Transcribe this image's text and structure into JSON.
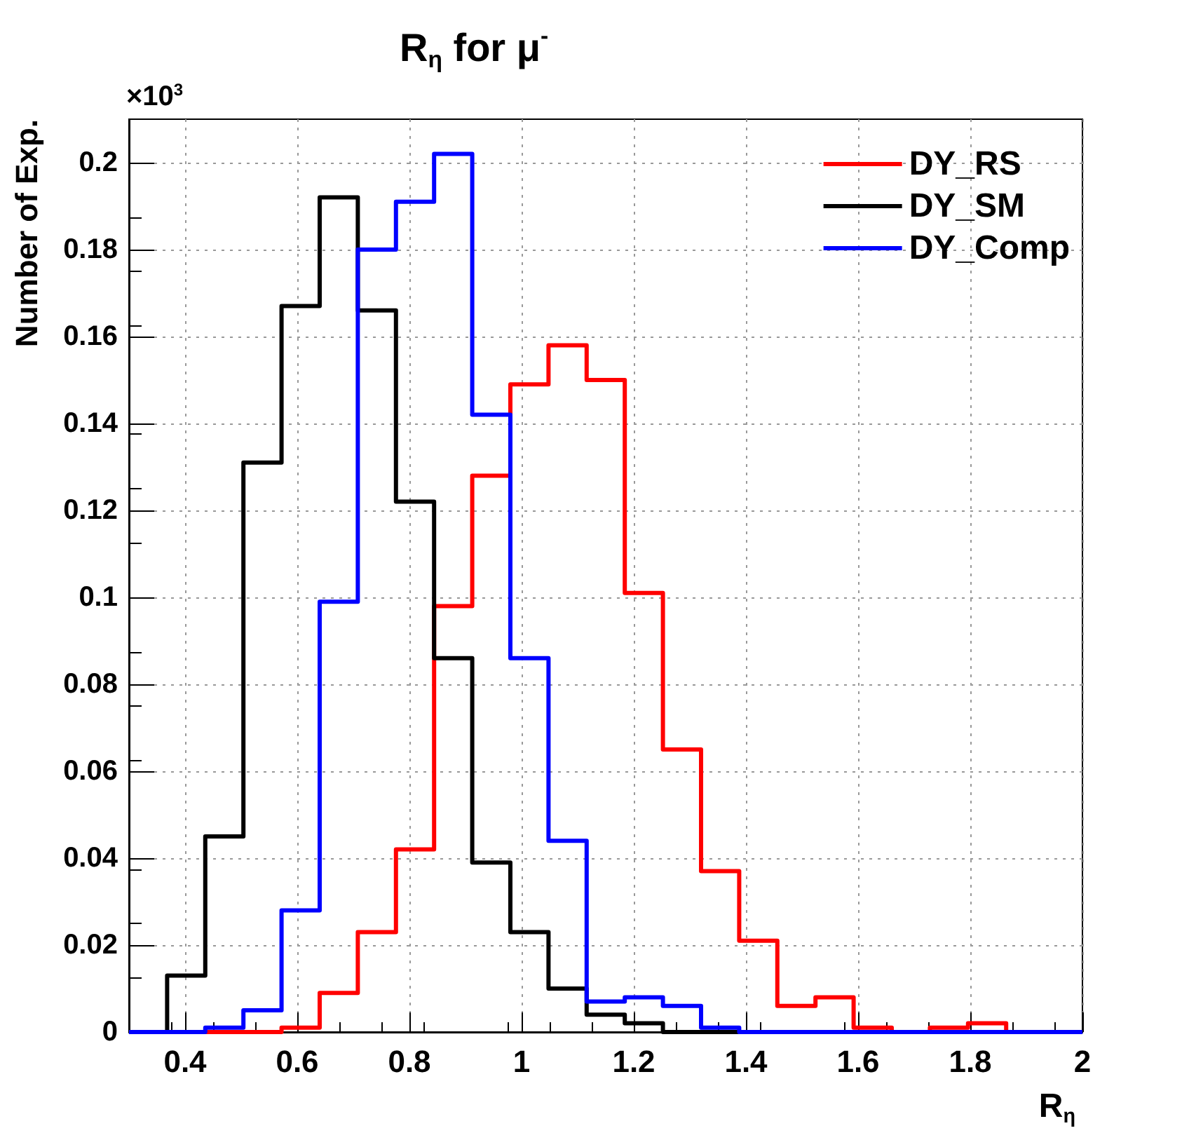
{
  "chart_data": {
    "type": "histogram",
    "title": "R$_{η}$ for μ$^{-}$",
    "xlabel": "R$_{η}$",
    "ylabel": "Number of Exp.",
    "annotations": [
      "×10$^{3}$"
    ],
    "bins": [
      0.3,
      0.368,
      0.436,
      0.504,
      0.572,
      0.64,
      0.708,
      0.776,
      0.844,
      0.912,
      0.98,
      1.048,
      1.116,
      1.184,
      1.252,
      1.32,
      1.388,
      1.456,
      1.524,
      1.592,
      1.66,
      1.728,
      1.796,
      1.864,
      1.932,
      2.0
    ],
    "series": [
      {
        "name": "DY_RS",
        "color": "#ff0000",
        "values": [
          0,
          0,
          0,
          0,
          0.001,
          0.009,
          0.023,
          0.042,
          0.098,
          0.128,
          0.149,
          0.158,
          0.15,
          0.101,
          0.065,
          0.037,
          0.021,
          0.006,
          0.008,
          0.001,
          0,
          0.001,
          0.002,
          0,
          0
        ]
      },
      {
        "name": "DY_SM",
        "color": "#000000",
        "values": [
          0,
          0.013,
          0.045,
          0.131,
          0.167,
          0.192,
          0.166,
          0.122,
          0.086,
          0.039,
          0.023,
          0.01,
          0.004,
          0.002,
          0,
          0,
          0,
          0,
          0,
          0,
          0,
          0,
          0,
          0,
          0
        ]
      },
      {
        "name": "DY_Comp",
        "color": "#0000ff",
        "values": [
          0,
          0,
          0.001,
          0.005,
          0.028,
          0.099,
          0.18,
          0.191,
          0.202,
          0.142,
          0.086,
          0.044,
          0.007,
          0.008,
          0.006,
          0.001,
          0,
          0,
          0,
          0,
          0,
          0,
          0,
          0,
          0
        ]
      }
    ],
    "xlim": [
      0.3,
      2
    ],
    "xticks": [
      0.4,
      0.6,
      0.8,
      1,
      1.2,
      1.4,
      1.6,
      1.8,
      2
    ],
    "ylim": [
      0,
      0.21
    ],
    "yticks": [
      0,
      0.02,
      0.04,
      0.06,
      0.08,
      0.1,
      0.12,
      0.14,
      0.16,
      0.18,
      0.2
    ],
    "grid": true,
    "legend": "top right",
    "line_style": "solid"
  }
}
